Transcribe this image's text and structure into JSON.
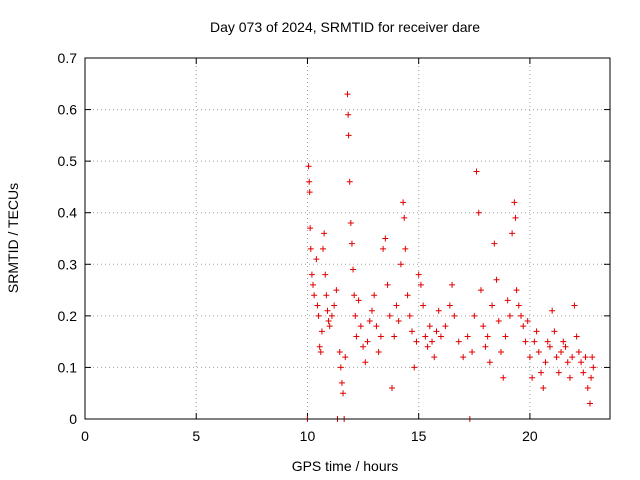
{
  "chart_data": {
    "type": "scatter",
    "title": "Day 073 of 2024, SRMTID for receiver dare",
    "xlabel": "GPS time / hours",
    "ylabel": "SRMTID / TECUs",
    "xlim": [
      0,
      23.6
    ],
    "ylim": [
      0,
      0.7
    ],
    "xticks": [
      0,
      5,
      10,
      15,
      20
    ],
    "yticks": [
      0,
      0.1,
      0.2,
      0.3,
      0.4,
      0.5,
      0.6,
      0.7
    ],
    "xtick_labels": [
      "0",
      "5",
      "10",
      "15",
      "20"
    ],
    "ytick_labels": [
      "0",
      "0.1",
      "0.2",
      "0.3",
      "0.4",
      "0.5",
      "0.6",
      "0.7"
    ],
    "grid": true,
    "marker": "+",
    "color": "#e00000",
    "series": [
      {
        "name": "SRMTID",
        "points": [
          [
            10.0,
            0.0
          ],
          [
            11.35,
            0.0
          ],
          [
            11.65,
            0.0
          ],
          [
            17.3,
            0.0
          ],
          [
            10.05,
            0.49
          ],
          [
            10.08,
            0.46
          ],
          [
            10.1,
            0.44
          ],
          [
            10.12,
            0.37
          ],
          [
            10.15,
            0.33
          ],
          [
            10.2,
            0.28
          ],
          [
            10.25,
            0.26
          ],
          [
            10.3,
            0.24
          ],
          [
            10.4,
            0.31
          ],
          [
            10.45,
            0.22
          ],
          [
            10.5,
            0.2
          ],
          [
            10.55,
            0.14
          ],
          [
            10.6,
            0.13
          ],
          [
            10.65,
            0.17
          ],
          [
            10.7,
            0.33
          ],
          [
            10.75,
            0.36
          ],
          [
            10.8,
            0.28
          ],
          [
            10.85,
            0.24
          ],
          [
            10.9,
            0.21
          ],
          [
            10.95,
            0.19
          ],
          [
            11.0,
            0.18
          ],
          [
            11.1,
            0.2
          ],
          [
            11.2,
            0.22
          ],
          [
            11.3,
            0.25
          ],
          [
            11.45,
            0.13
          ],
          [
            11.5,
            0.1
          ],
          [
            11.55,
            0.07
          ],
          [
            11.6,
            0.05
          ],
          [
            11.7,
            0.12
          ],
          [
            11.8,
            0.63
          ],
          [
            11.83,
            0.59
          ],
          [
            11.85,
            0.55
          ],
          [
            11.9,
            0.46
          ],
          [
            11.95,
            0.38
          ],
          [
            12.0,
            0.34
          ],
          [
            12.05,
            0.29
          ],
          [
            12.1,
            0.24
          ],
          [
            12.15,
            0.2
          ],
          [
            12.2,
            0.16
          ],
          [
            12.3,
            0.23
          ],
          [
            12.4,
            0.18
          ],
          [
            12.5,
            0.14
          ],
          [
            12.6,
            0.11
          ],
          [
            12.7,
            0.15
          ],
          [
            12.8,
            0.19
          ],
          [
            12.9,
            0.21
          ],
          [
            13.0,
            0.24
          ],
          [
            13.1,
            0.18
          ],
          [
            13.2,
            0.13
          ],
          [
            13.3,
            0.16
          ],
          [
            13.4,
            0.33
          ],
          [
            13.5,
            0.35
          ],
          [
            13.6,
            0.26
          ],
          [
            13.7,
            0.2
          ],
          [
            13.8,
            0.06
          ],
          [
            13.9,
            0.16
          ],
          [
            14.0,
            0.22
          ],
          [
            14.1,
            0.19
          ],
          [
            14.2,
            0.3
          ],
          [
            14.3,
            0.42
          ],
          [
            14.35,
            0.39
          ],
          [
            14.4,
            0.33
          ],
          [
            14.5,
            0.24
          ],
          [
            14.6,
            0.2
          ],
          [
            14.7,
            0.17
          ],
          [
            14.8,
            0.1
          ],
          [
            14.9,
            0.15
          ],
          [
            15.0,
            0.28
          ],
          [
            15.1,
            0.26
          ],
          [
            15.2,
            0.22
          ],
          [
            15.3,
            0.16
          ],
          [
            15.4,
            0.14
          ],
          [
            15.5,
            0.18
          ],
          [
            15.6,
            0.15
          ],
          [
            15.7,
            0.12
          ],
          [
            15.8,
            0.17
          ],
          [
            15.9,
            0.21
          ],
          [
            16.0,
            0.16
          ],
          [
            16.2,
            0.18
          ],
          [
            16.4,
            0.22
          ],
          [
            16.5,
            0.26
          ],
          [
            16.6,
            0.2
          ],
          [
            16.8,
            0.15
          ],
          [
            17.0,
            0.12
          ],
          [
            17.2,
            0.16
          ],
          [
            17.4,
            0.13
          ],
          [
            17.5,
            0.2
          ],
          [
            17.6,
            0.48
          ],
          [
            17.7,
            0.4
          ],
          [
            17.8,
            0.25
          ],
          [
            17.9,
            0.18
          ],
          [
            18.0,
            0.14
          ],
          [
            18.1,
            0.16
          ],
          [
            18.2,
            0.11
          ],
          [
            18.3,
            0.22
          ],
          [
            18.4,
            0.34
          ],
          [
            18.5,
            0.27
          ],
          [
            18.6,
            0.19
          ],
          [
            18.7,
            0.13
          ],
          [
            18.8,
            0.08
          ],
          [
            18.9,
            0.16
          ],
          [
            19.0,
            0.23
          ],
          [
            19.1,
            0.2
          ],
          [
            19.2,
            0.36
          ],
          [
            19.3,
            0.42
          ],
          [
            19.35,
            0.39
          ],
          [
            19.4,
            0.25
          ],
          [
            19.5,
            0.22
          ],
          [
            19.6,
            0.2
          ],
          [
            19.7,
            0.18
          ],
          [
            19.8,
            0.15
          ],
          [
            19.9,
            0.19
          ],
          [
            20.0,
            0.12
          ],
          [
            20.1,
            0.08
          ],
          [
            20.2,
            0.15
          ],
          [
            20.3,
            0.17
          ],
          [
            20.4,
            0.13
          ],
          [
            20.5,
            0.09
          ],
          [
            20.6,
            0.06
          ],
          [
            20.7,
            0.11
          ],
          [
            20.8,
            0.15
          ],
          [
            20.9,
            0.14
          ],
          [
            21.0,
            0.21
          ],
          [
            21.1,
            0.17
          ],
          [
            21.2,
            0.12
          ],
          [
            21.3,
            0.09
          ],
          [
            21.4,
            0.13
          ],
          [
            21.5,
            0.15
          ],
          [
            21.6,
            0.14
          ],
          [
            21.7,
            0.11
          ],
          [
            21.8,
            0.08
          ],
          [
            21.9,
            0.12
          ],
          [
            22.0,
            0.22
          ],
          [
            22.1,
            0.16
          ],
          [
            22.2,
            0.13
          ],
          [
            22.3,
            0.11
          ],
          [
            22.4,
            0.09
          ],
          [
            22.5,
            0.12
          ],
          [
            22.6,
            0.06
          ],
          [
            22.7,
            0.03
          ],
          [
            22.75,
            0.08
          ],
          [
            22.8,
            0.12
          ],
          [
            22.85,
            0.1
          ]
        ]
      }
    ]
  }
}
